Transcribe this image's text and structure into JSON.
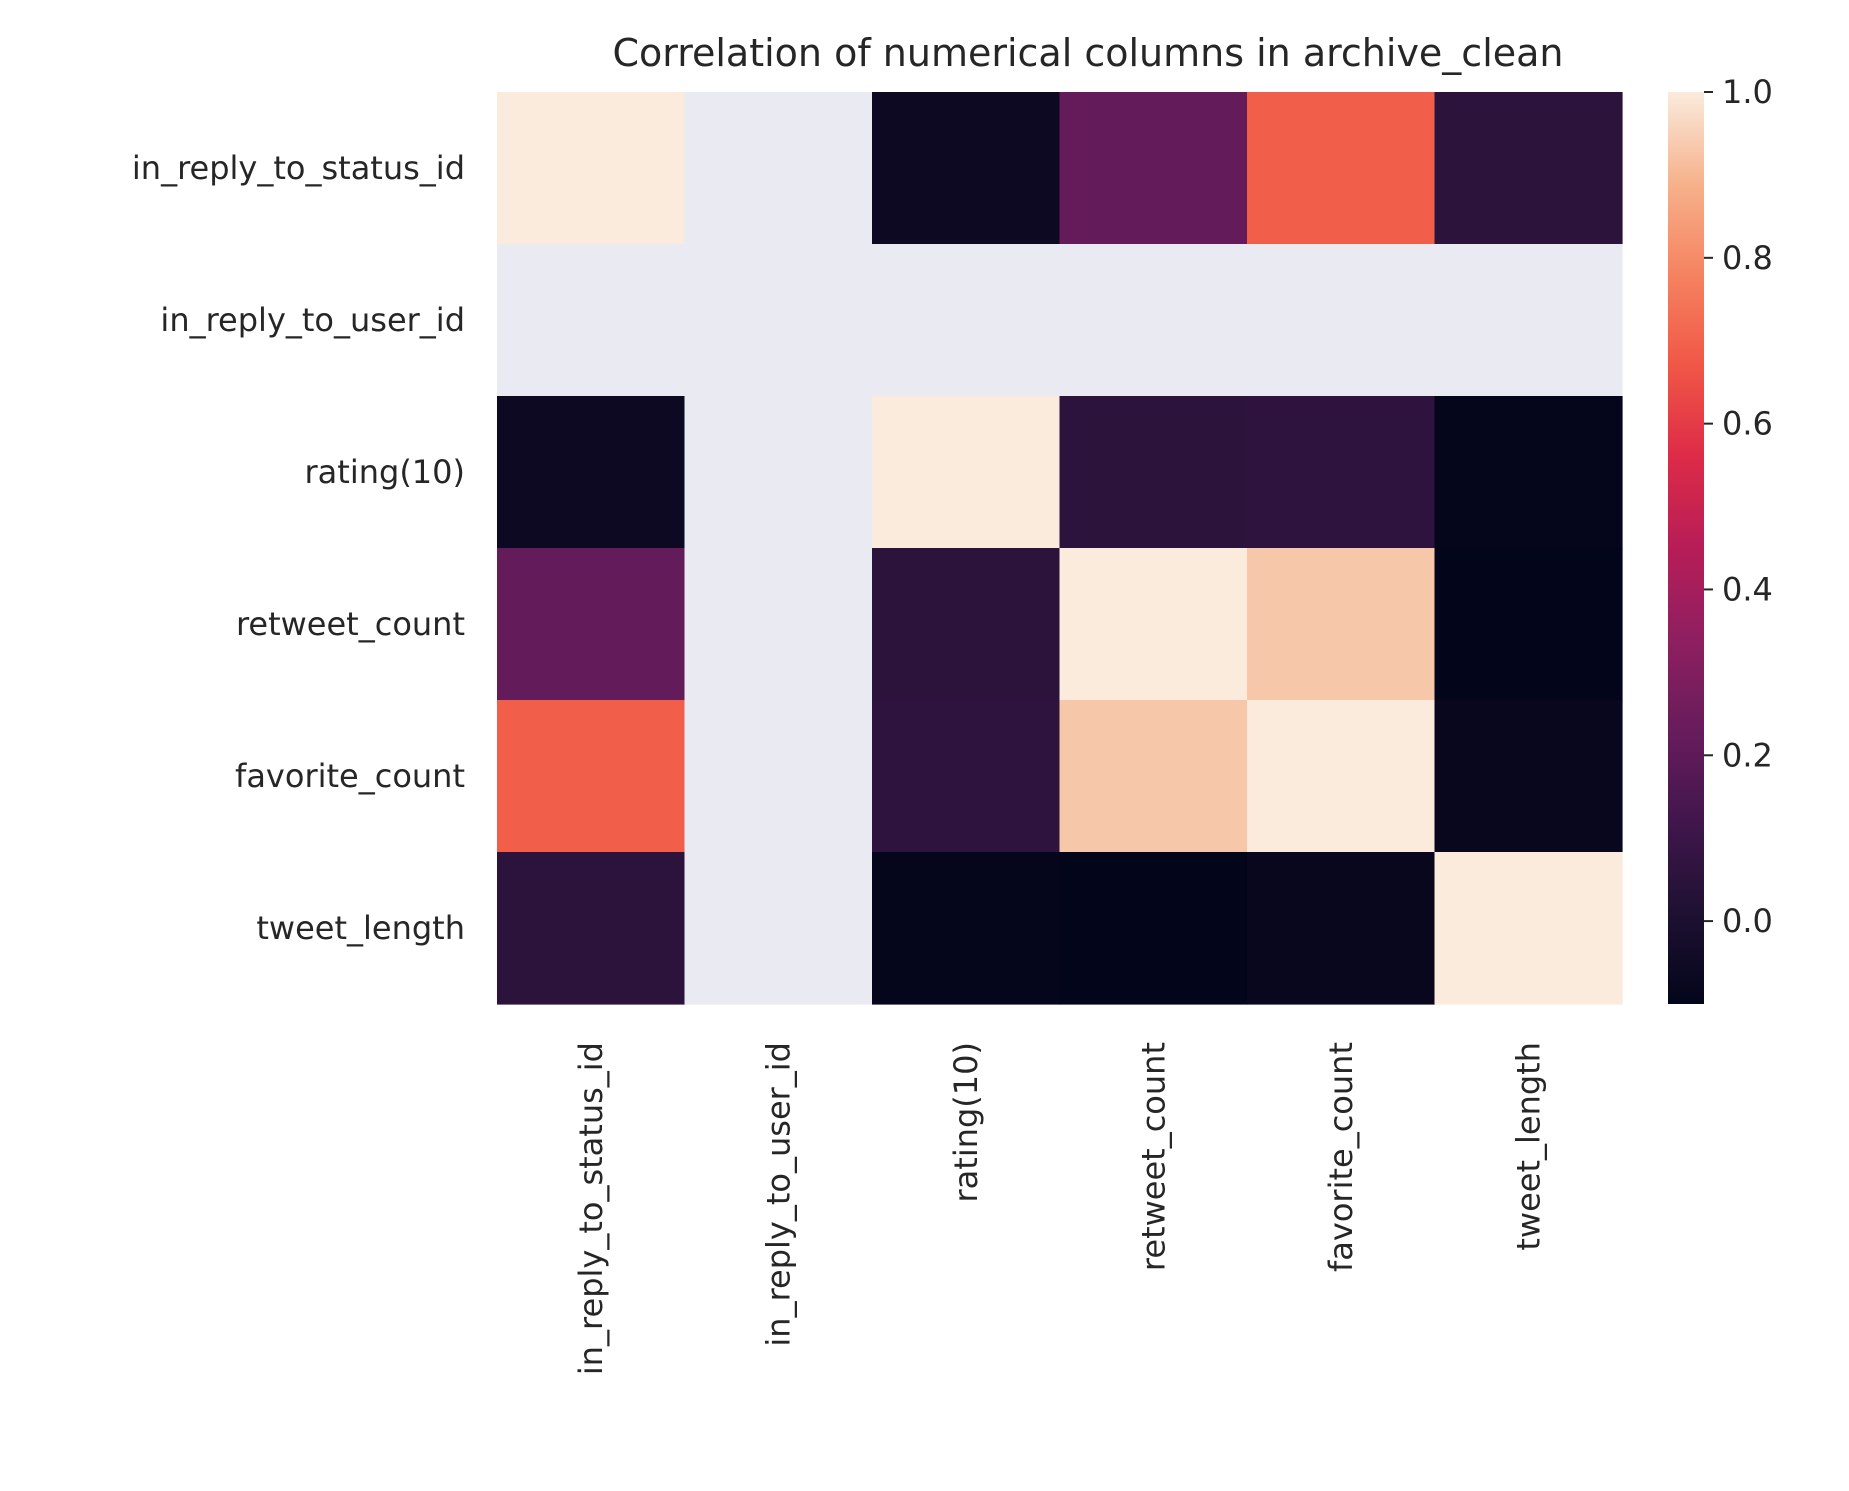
{
  "chart_data": {
    "type": "heatmap",
    "title": "Correlation of numerical columns in archive_clean",
    "xlabel": "",
    "ylabel": "",
    "rows": [
      "in_reply_to_status_id",
      "in_reply_to_user_id",
      "rating(10)",
      "retweet_count",
      "favorite_count",
      "tweet_length"
    ],
    "columns": [
      "in_reply_to_status_id",
      "in_reply_to_user_id",
      "rating(10)",
      "retweet_count",
      "favorite_count",
      "tweet_length"
    ],
    "values": [
      [
        1.0,
        null,
        -0.06,
        0.22,
        0.69,
        0.05
      ],
      [
        null,
        null,
        null,
        null,
        null,
        null
      ],
      [
        -0.06,
        null,
        1.0,
        0.05,
        0.06,
        -0.09
      ],
      [
        0.22,
        null,
        0.05,
        1.0,
        0.93,
        -0.1
      ],
      [
        0.69,
        null,
        0.06,
        0.93,
        1.0,
        -0.08
      ],
      [
        0.05,
        null,
        -0.09,
        -0.1,
        -0.08,
        1.0
      ]
    ],
    "missing_color": "#eaeaf2",
    "colormap": "rocket",
    "colorbar": {
      "vmin": -0.1,
      "vmax": 1.0,
      "ticks": [
        0.0,
        0.2,
        0.4,
        0.6,
        0.8,
        1.0
      ],
      "tick_labels": [
        "0.0",
        "0.2",
        "0.4",
        "0.6",
        "0.8",
        "1.0"
      ]
    },
    "grid": false,
    "legend": "colorbar-right"
  }
}
